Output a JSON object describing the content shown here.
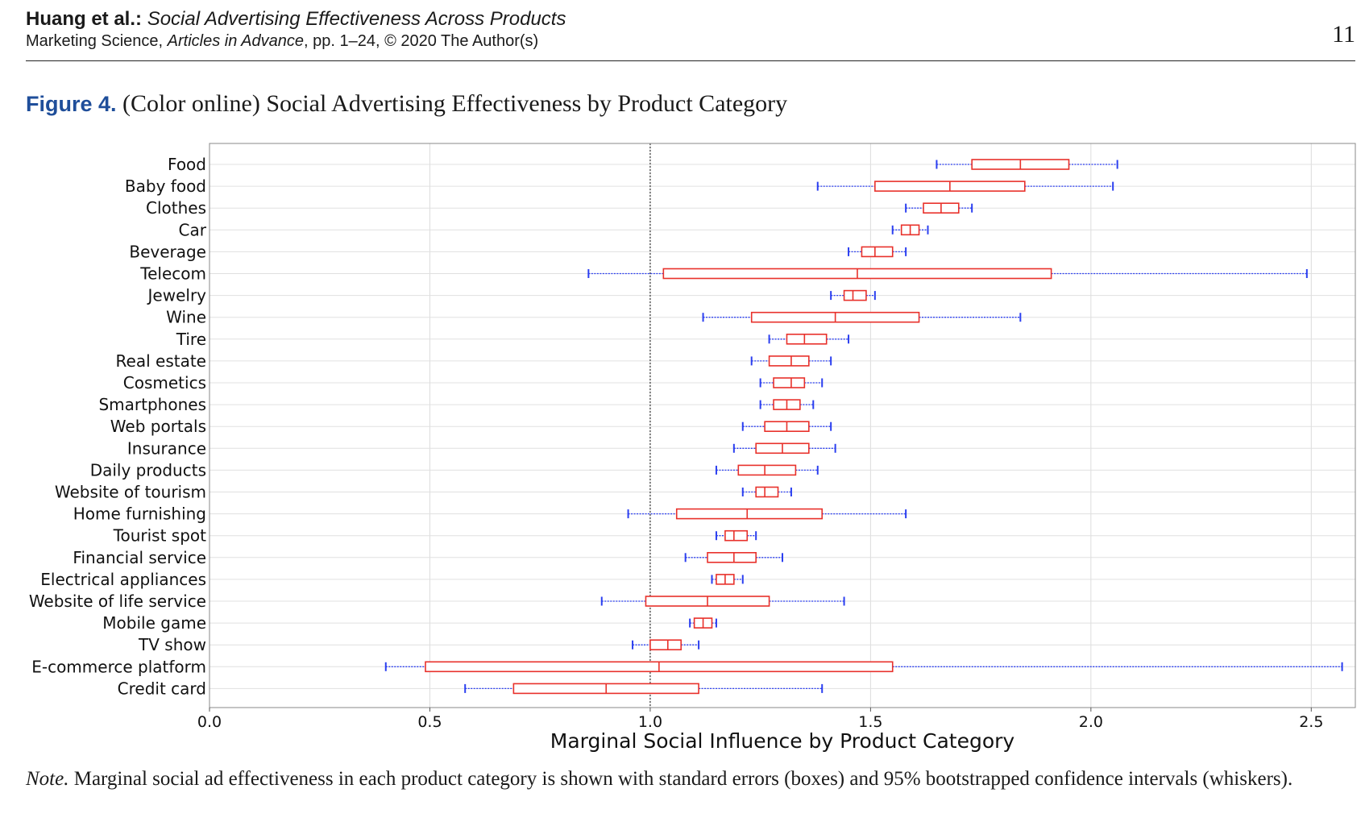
{
  "header": {
    "authors": "Huang et al.:",
    "article_title": "Social Advertising Effectiveness Across Products",
    "journal": "Marketing Science,",
    "journal_italic": "Articles in Advance",
    "journal_rest": ", pp. 1–24, © 2020 The Author(s)",
    "page_number": "11"
  },
  "figure": {
    "label": "Figure 4.",
    "caption": "(Color online) Social Advertising Effectiveness by Product Category"
  },
  "note": {
    "label": "Note.",
    "text": "Marginal social ad effectiveness in each product category is shown with standard errors (boxes) and 95% bootstrapped confidence intervals (whiskers)."
  },
  "chart_data": {
    "type": "boxplot-horizontal",
    "xlabel": "Marginal Social Influence by Product Category",
    "xlim": [
      0.0,
      2.6
    ],
    "xticks": [
      0.0,
      0.5,
      1.0,
      1.5,
      2.0,
      2.5
    ],
    "xtick_labels": [
      "0.0",
      "0.5",
      "1.0",
      "1.5",
      "2.0",
      "2.5"
    ],
    "reference_line": 1.0,
    "grid": true,
    "box_color": "#e8312b",
    "whisker_color": "#2b3ff0",
    "categories": [
      {
        "name": "Food",
        "ci_low": 1.65,
        "box_low": 1.73,
        "median": 1.84,
        "box_high": 1.95,
        "ci_high": 2.06
      },
      {
        "name": "Baby food",
        "ci_low": 1.38,
        "box_low": 1.51,
        "median": 1.68,
        "box_high": 1.85,
        "ci_high": 2.05
      },
      {
        "name": "Clothes",
        "ci_low": 1.58,
        "box_low": 1.62,
        "median": 1.66,
        "box_high": 1.7,
        "ci_high": 1.73
      },
      {
        "name": "Car",
        "ci_low": 1.55,
        "box_low": 1.57,
        "median": 1.59,
        "box_high": 1.61,
        "ci_high": 1.63
      },
      {
        "name": "Beverage",
        "ci_low": 1.45,
        "box_low": 1.48,
        "median": 1.51,
        "box_high": 1.55,
        "ci_high": 1.58
      },
      {
        "name": "Telecom",
        "ci_low": 0.86,
        "box_low": 1.03,
        "median": 1.47,
        "box_high": 1.91,
        "ci_high": 2.49
      },
      {
        "name": "Jewelry",
        "ci_low": 1.41,
        "box_low": 1.44,
        "median": 1.46,
        "box_high": 1.49,
        "ci_high": 1.51
      },
      {
        "name": "Wine",
        "ci_low": 1.12,
        "box_low": 1.23,
        "median": 1.42,
        "box_high": 1.61,
        "ci_high": 1.84
      },
      {
        "name": "Tire",
        "ci_low": 1.27,
        "box_low": 1.31,
        "median": 1.35,
        "box_high": 1.4,
        "ci_high": 1.45
      },
      {
        "name": "Real estate",
        "ci_low": 1.23,
        "box_low": 1.27,
        "median": 1.32,
        "box_high": 1.36,
        "ci_high": 1.41
      },
      {
        "name": "Cosmetics",
        "ci_low": 1.25,
        "box_low": 1.28,
        "median": 1.32,
        "box_high": 1.35,
        "ci_high": 1.39
      },
      {
        "name": "Smartphones",
        "ci_low": 1.25,
        "box_low": 1.28,
        "median": 1.31,
        "box_high": 1.34,
        "ci_high": 1.37
      },
      {
        "name": "Web portals",
        "ci_low": 1.21,
        "box_low": 1.26,
        "median": 1.31,
        "box_high": 1.36,
        "ci_high": 1.41
      },
      {
        "name": "Insurance",
        "ci_low": 1.19,
        "box_low": 1.24,
        "median": 1.3,
        "box_high": 1.36,
        "ci_high": 1.42
      },
      {
        "name": "Daily products",
        "ci_low": 1.15,
        "box_low": 1.2,
        "median": 1.26,
        "box_high": 1.33,
        "ci_high": 1.38
      },
      {
        "name": "Website of tourism",
        "ci_low": 1.21,
        "box_low": 1.24,
        "median": 1.26,
        "box_high": 1.29,
        "ci_high": 1.32
      },
      {
        "name": "Home furnishing",
        "ci_low": 0.95,
        "box_low": 1.06,
        "median": 1.22,
        "box_high": 1.39,
        "ci_high": 1.58
      },
      {
        "name": "Tourist spot",
        "ci_low": 1.15,
        "box_low": 1.17,
        "median": 1.19,
        "box_high": 1.22,
        "ci_high": 1.24
      },
      {
        "name": "Financial service",
        "ci_low": 1.08,
        "box_low": 1.13,
        "median": 1.19,
        "box_high": 1.24,
        "ci_high": 1.3
      },
      {
        "name": "Electrical appliances",
        "ci_low": 1.14,
        "box_low": 1.15,
        "median": 1.17,
        "box_high": 1.19,
        "ci_high": 1.21
      },
      {
        "name": "Website of life service",
        "ci_low": 0.89,
        "box_low": 0.99,
        "median": 1.13,
        "box_high": 1.27,
        "ci_high": 1.44
      },
      {
        "name": "Mobile game",
        "ci_low": 1.09,
        "box_low": 1.1,
        "median": 1.12,
        "box_high": 1.14,
        "ci_high": 1.15
      },
      {
        "name": "TV show",
        "ci_low": 0.96,
        "box_low": 1.0,
        "median": 1.04,
        "box_high": 1.07,
        "ci_high": 1.11
      },
      {
        "name": "E-commerce platform",
        "ci_low": 0.4,
        "box_low": 0.49,
        "median": 1.02,
        "box_high": 1.55,
        "ci_high": 2.57
      },
      {
        "name": "Credit card",
        "ci_low": 0.58,
        "box_low": 0.69,
        "median": 0.9,
        "box_high": 1.11,
        "ci_high": 1.39
      }
    ]
  }
}
